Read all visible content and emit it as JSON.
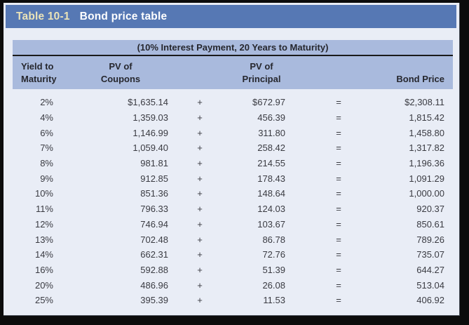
{
  "colors": {
    "frame": "#0c0c0c",
    "page_bg": "#e9edf6",
    "title_bar_bg": "#5678b4",
    "title_label": "#eae3b8",
    "title_text": "#ffffff",
    "table_header_bg": "#a9badd",
    "heading_text": "#26272e",
    "body_text": "#3a3b42",
    "divider": "#1a1a1a"
  },
  "header": {
    "label": "Table 10-1",
    "title": "Bond price table"
  },
  "table": {
    "subtitle": "(10% Interest Payment, 20 Years to Maturity)",
    "column_headers": [
      "Yield to\nMaturity",
      "PV of\nCoupons",
      "PV of\nPrincipal",
      "Bond Price"
    ],
    "operators": {
      "plus": "+",
      "equals": "="
    },
    "rows": [
      {
        "yield_to_maturity": "2%",
        "pv_of_coupons": "$1,635.14",
        "pv_of_principal": "$672.97",
        "bond_price": "$2,308.11"
      },
      {
        "yield_to_maturity": "4%",
        "pv_of_coupons": "1,359.03",
        "pv_of_principal": "456.39",
        "bond_price": "1,815.42"
      },
      {
        "yield_to_maturity": "6%",
        "pv_of_coupons": "1,146.99",
        "pv_of_principal": "311.80",
        "bond_price": "1,458.80"
      },
      {
        "yield_to_maturity": "7%",
        "pv_of_coupons": "1,059.40",
        "pv_of_principal": "258.42",
        "bond_price": "1,317.82"
      },
      {
        "yield_to_maturity": "8%",
        "pv_of_coupons": "981.81",
        "pv_of_principal": "214.55",
        "bond_price": "1,196.36"
      },
      {
        "yield_to_maturity": "9%",
        "pv_of_coupons": "912.85",
        "pv_of_principal": "178.43",
        "bond_price": "1,091.29"
      },
      {
        "yield_to_maturity": "10%",
        "pv_of_coupons": "851.36",
        "pv_of_principal": "148.64",
        "bond_price": "1,000.00"
      },
      {
        "yield_to_maturity": "11%",
        "pv_of_coupons": "796.33",
        "pv_of_principal": "124.03",
        "bond_price": "920.37"
      },
      {
        "yield_to_maturity": "12%",
        "pv_of_coupons": "746.94",
        "pv_of_principal": "103.67",
        "bond_price": "850.61"
      },
      {
        "yield_to_maturity": "13%",
        "pv_of_coupons": "702.48",
        "pv_of_principal": "86.78",
        "bond_price": "789.26"
      },
      {
        "yield_to_maturity": "14%",
        "pv_of_coupons": "662.31",
        "pv_of_principal": "72.76",
        "bond_price": "735.07"
      },
      {
        "yield_to_maturity": "16%",
        "pv_of_coupons": "592.88",
        "pv_of_principal": "51.39",
        "bond_price": "644.27"
      },
      {
        "yield_to_maturity": "20%",
        "pv_of_coupons": "486.96",
        "pv_of_principal": "26.08",
        "bond_price": "513.04"
      },
      {
        "yield_to_maturity": "25%",
        "pv_of_coupons": "395.39",
        "pv_of_principal": "11.53",
        "bond_price": "406.92"
      }
    ]
  },
  "chart_data": {
    "type": "table",
    "title": "Bond price table (10% Interest Payment, 20 Years to Maturity)",
    "columns": [
      "Yield to Maturity",
      "PV of Coupons",
      "PV of Principal",
      "Bond Price"
    ],
    "rows": [
      [
        "2%",
        1635.14,
        672.97,
        2308.11
      ],
      [
        "4%",
        1359.03,
        456.39,
        1815.42
      ],
      [
        "6%",
        1146.99,
        311.8,
        1458.8
      ],
      [
        "7%",
        1059.4,
        258.42,
        1317.82
      ],
      [
        "8%",
        981.81,
        214.55,
        1196.36
      ],
      [
        "9%",
        912.85,
        178.43,
        1091.29
      ],
      [
        "10%",
        851.36,
        148.64,
        1000.0
      ],
      [
        "11%",
        796.33,
        124.03,
        920.37
      ],
      [
        "12%",
        746.94,
        103.67,
        850.61
      ],
      [
        "13%",
        702.48,
        86.78,
        789.26
      ],
      [
        "14%",
        662.31,
        72.76,
        735.07
      ],
      [
        "16%",
        592.88,
        51.39,
        644.27
      ],
      [
        "20%",
        486.96,
        26.08,
        513.04
      ],
      [
        "25%",
        395.39,
        11.53,
        406.92
      ]
    ]
  }
}
